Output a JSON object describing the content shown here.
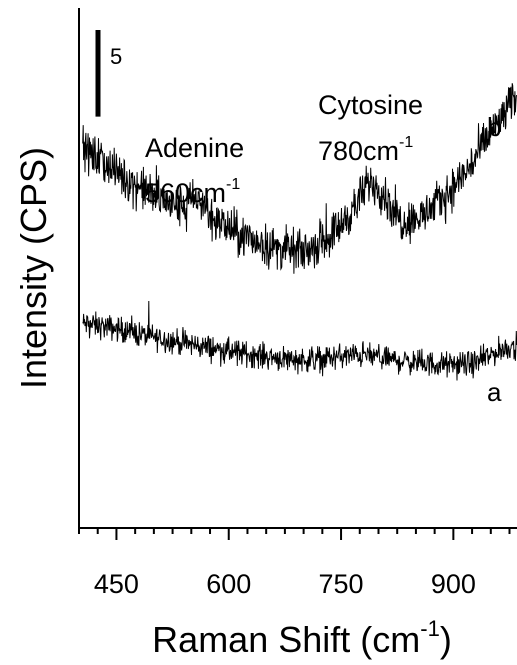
{
  "chart_data": {
    "type": "line",
    "title": "",
    "xlabel": "Raman Shift (cm",
    "xlabel_sup": "-1",
    "xlabel_close": ")",
    "ylabel": "Intensity (CPS)",
    "xlim": [
      400,
      985
    ],
    "ylim": [
      -6,
      24
    ],
    "xticks": [
      450,
      600,
      750,
      900
    ],
    "xtick_labels": [
      "450",
      "600",
      "750",
      "900"
    ],
    "x_minor_step": 25,
    "y_scale_bar": {
      "value": 5,
      "label": "5"
    },
    "series": [
      {
        "name": "a",
        "noise": 0.45,
        "points": [
          [
            405,
            5.8
          ],
          [
            450,
            5.5
          ],
          [
            500,
            5.0
          ],
          [
            550,
            4.6
          ],
          [
            600,
            4.2
          ],
          [
            650,
            3.9
          ],
          [
            700,
            3.7
          ],
          [
            750,
            3.9
          ],
          [
            780,
            4.0
          ],
          [
            820,
            3.7
          ],
          [
            860,
            3.5
          ],
          [
            900,
            3.4
          ],
          [
            930,
            3.5
          ],
          [
            960,
            4.2
          ],
          [
            985,
            4.6
          ]
        ]
      },
      {
        "name": "b",
        "noise": 0.75,
        "points": [
          [
            405,
            15.8
          ],
          [
            430,
            15.2
          ],
          [
            460,
            14.2
          ],
          [
            500,
            13.2
          ],
          [
            530,
            12.5
          ],
          [
            560,
            13.0
          ],
          [
            580,
            11.8
          ],
          [
            620,
            10.8
          ],
          [
            660,
            10.2
          ],
          [
            700,
            9.9
          ],
          [
            740,
            11.0
          ],
          [
            770,
            12.6
          ],
          [
            790,
            14.1
          ],
          [
            805,
            13.4
          ],
          [
            830,
            11.7
          ],
          [
            860,
            12.0
          ],
          [
            890,
            13.2
          ],
          [
            920,
            14.7
          ],
          [
            950,
            16.8
          ],
          [
            970,
            18.0
          ],
          [
            985,
            19.0
          ]
        ]
      }
    ],
    "annotations": [
      {
        "line1": "Adenine",
        "line2": "560cm",
        "sup": "-1"
      },
      {
        "line1": "Cytosine",
        "line2": "780cm",
        "sup": "-1"
      }
    ],
    "legend": "none",
    "grid": false
  }
}
